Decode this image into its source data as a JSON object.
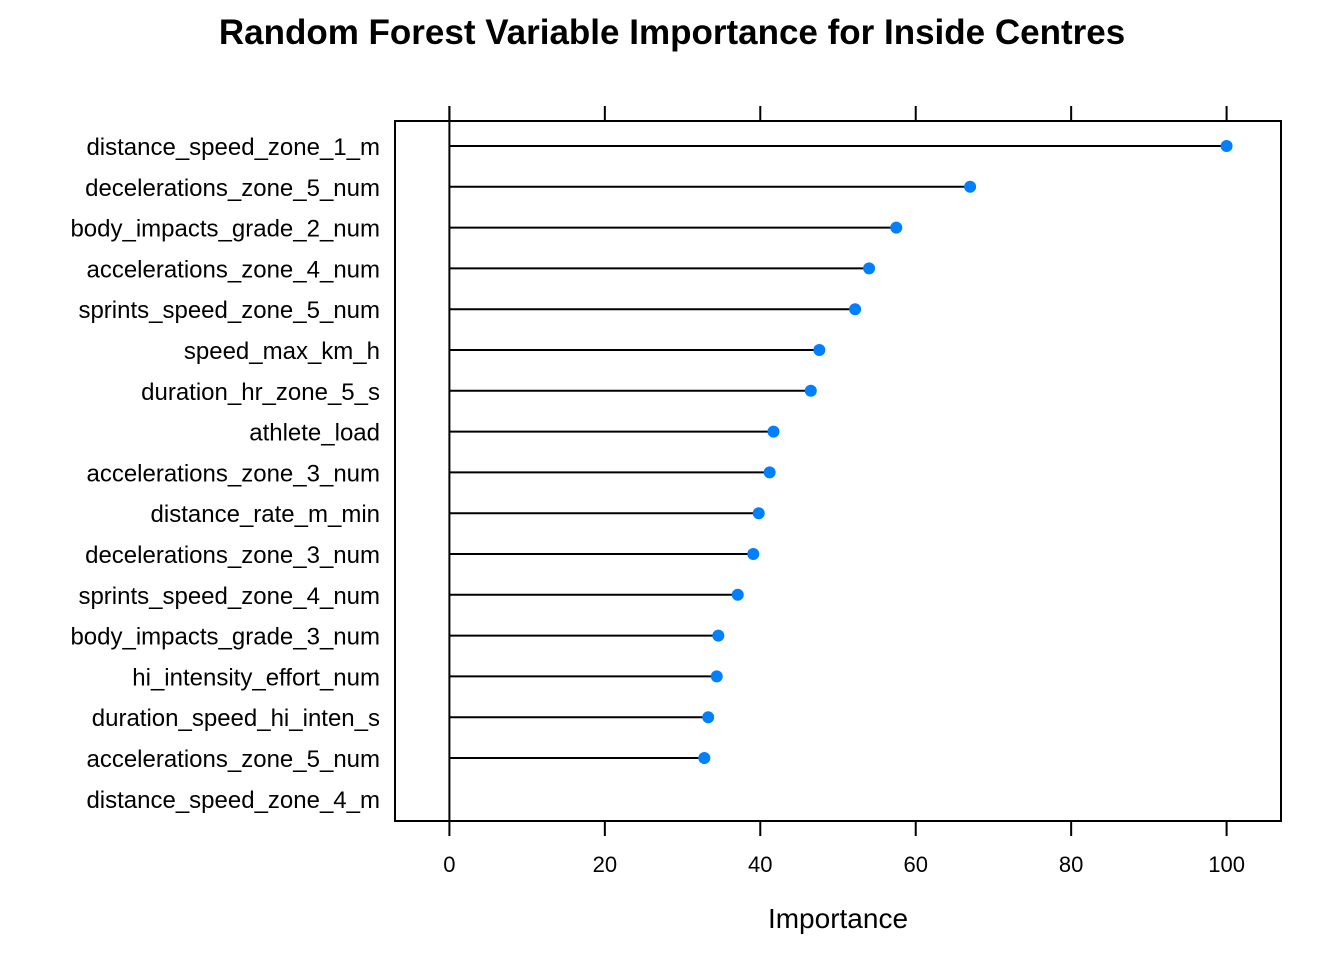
{
  "chart_data": {
    "type": "lollipop",
    "title": "Random Forest Variable Importance for Inside Centres",
    "xlabel": "Importance",
    "ylabel": "",
    "xlim": [
      -7,
      107
    ],
    "xticks": [
      0,
      20,
      40,
      60,
      80,
      100
    ],
    "grid": false,
    "colors": {
      "point": "#0080ff",
      "line": "#000000",
      "axis": "#000000"
    },
    "categories": [
      "distance_speed_zone_1_m",
      "decelerations_zone_5_num",
      "body_impacts_grade_2_num",
      "accelerations_zone_4_num",
      "sprints_speed_zone_5_num",
      "speed_max_km_h",
      "duration_hr_zone_5_s",
      "athlete_load",
      "accelerations_zone_3_num",
      "distance_rate_m_min",
      "decelerations_zone_3_num",
      "sprints_speed_zone_4_num",
      "body_impacts_grade_3_num",
      "hi_intensity_effort_num",
      "duration_speed_hi_inten_s",
      "accelerations_zone_5_num",
      "distance_speed_zone_4_m"
    ],
    "values": [
      100,
      67,
      57.5,
      54,
      52.2,
      47.6,
      46.5,
      41.7,
      41.2,
      39.8,
      39.1,
      37.1,
      34.6,
      34.4,
      33.3,
      32.8,
      0
    ]
  }
}
